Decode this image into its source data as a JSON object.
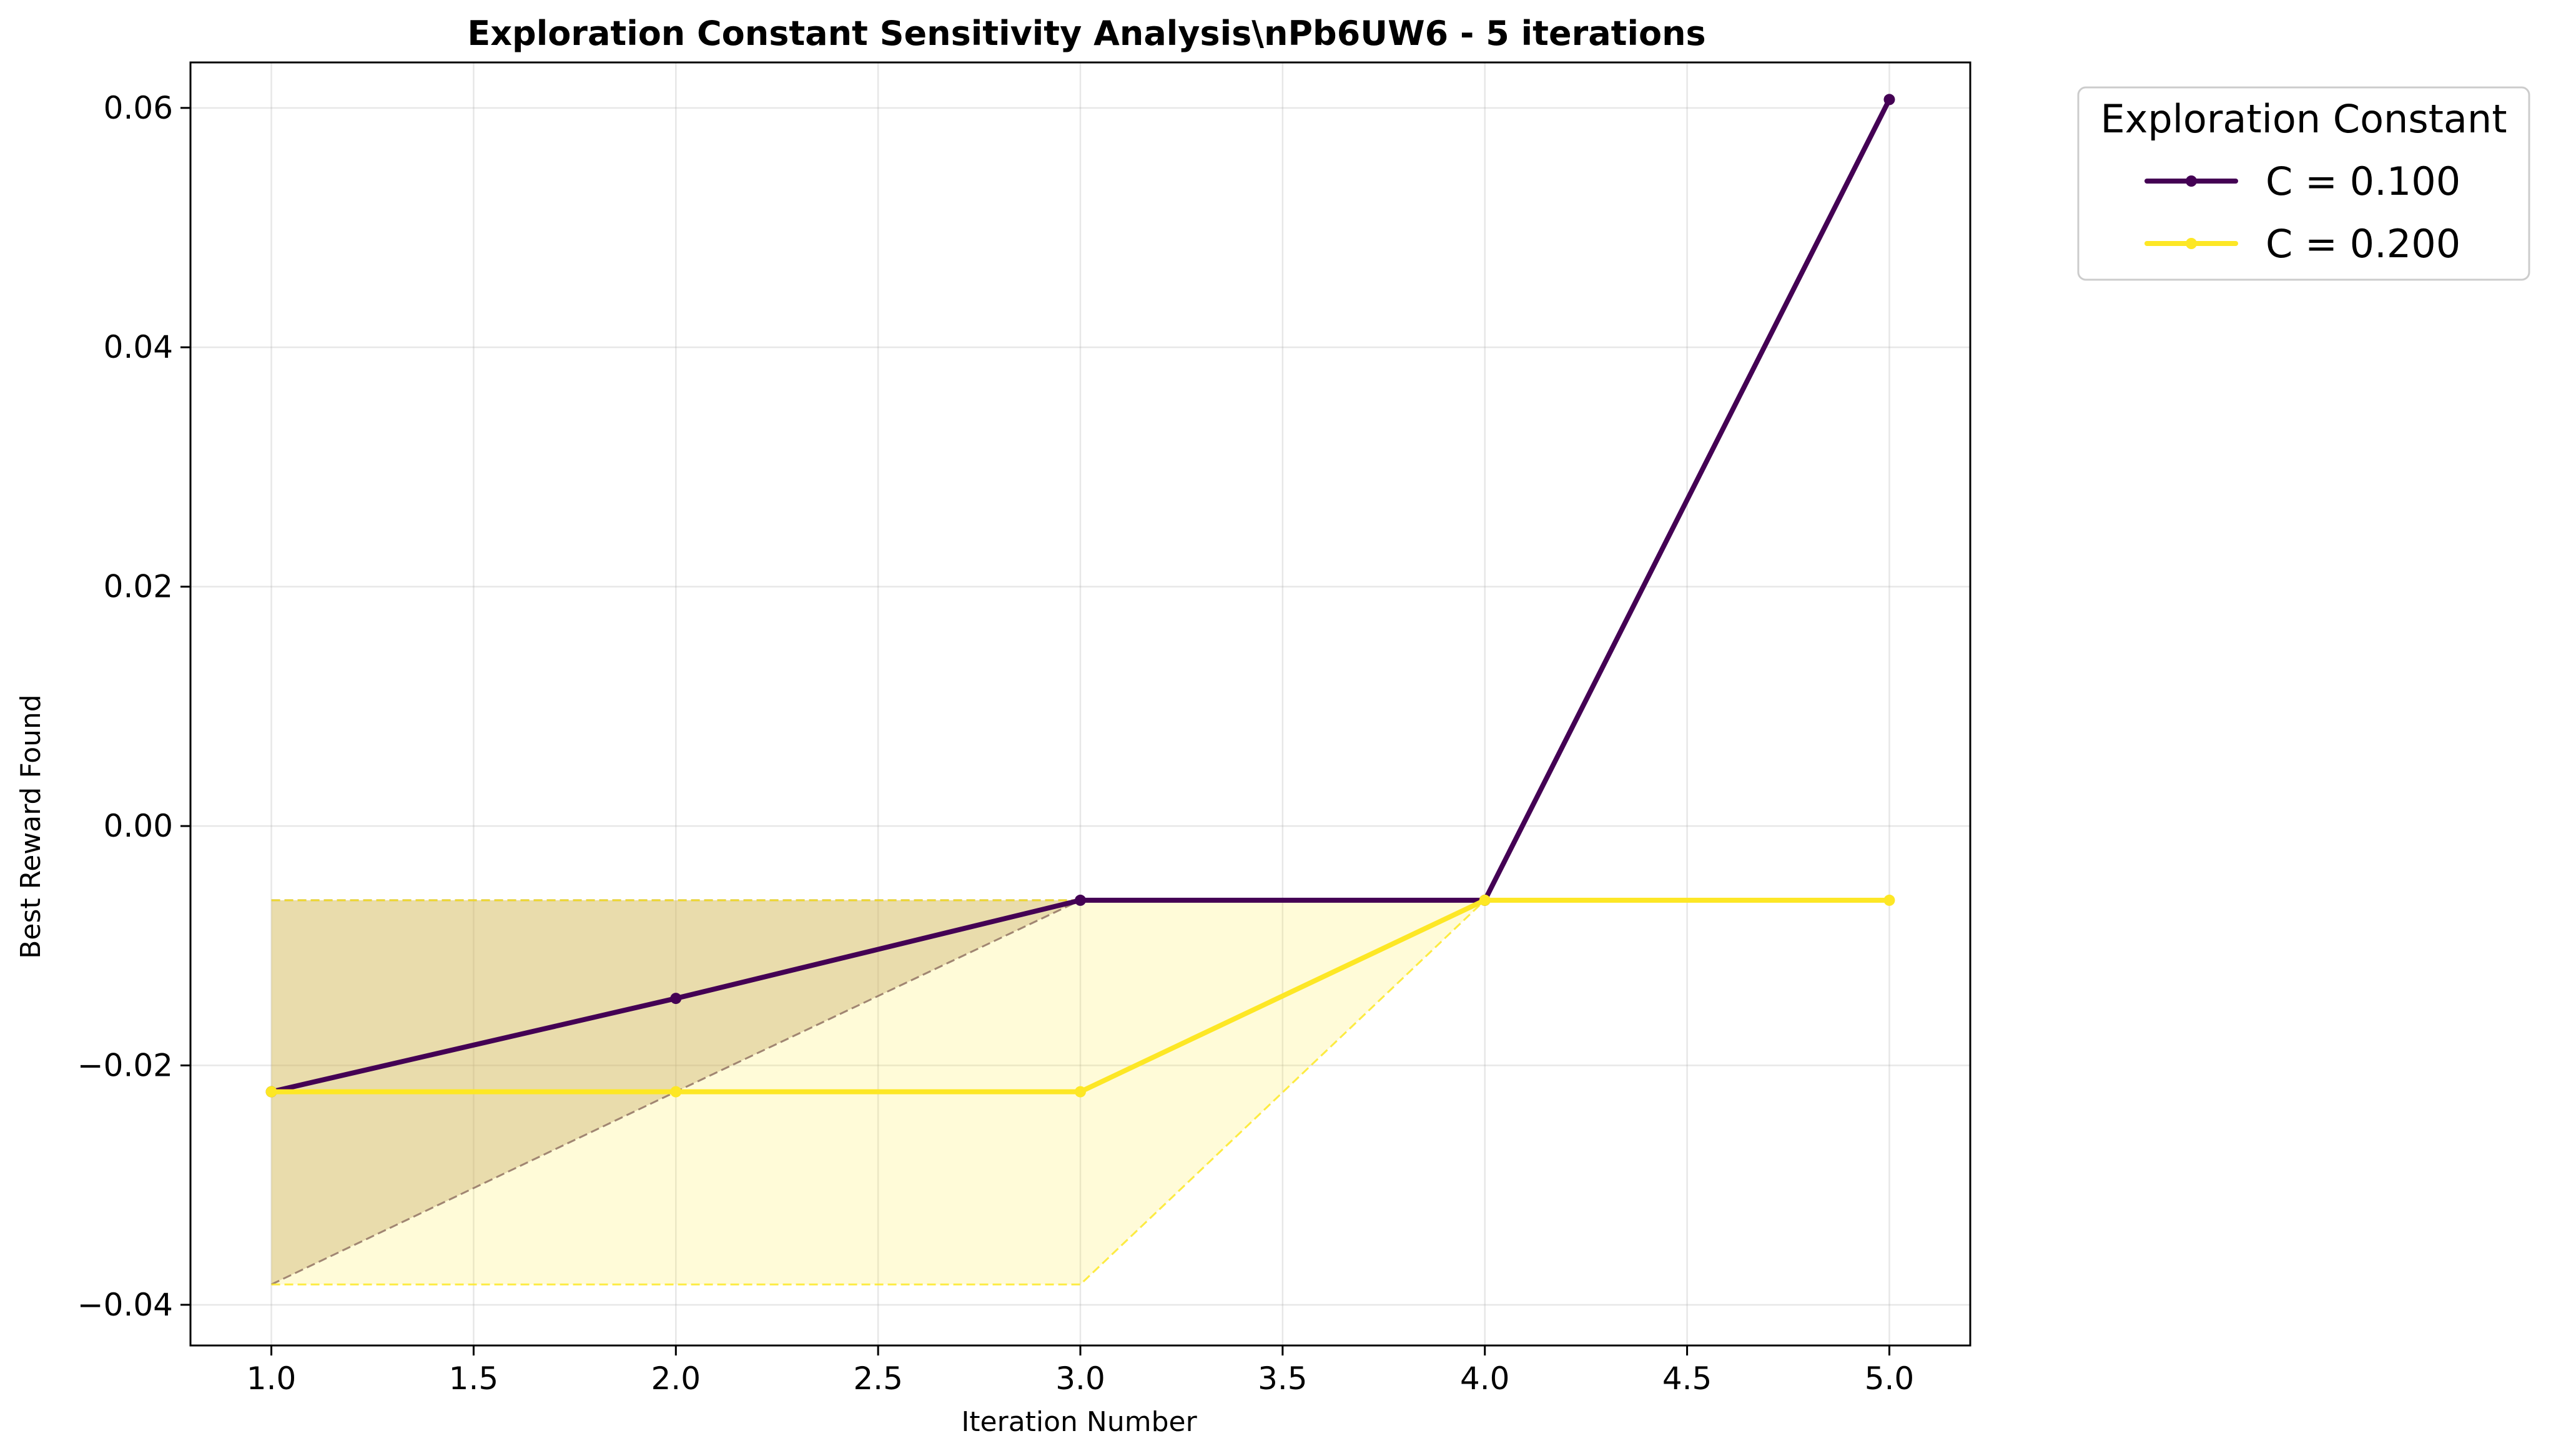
{
  "chart_data": {
    "type": "line",
    "title": "Exploration Constant Sensitivity Analysis\\nPb6UW6 - 5 iterations",
    "xlabel": "Iteration Number",
    "ylabel": "Best Reward Found",
    "xlim": [
      0.8,
      5.2
    ],
    "ylim": [
      -0.0434,
      0.0638
    ],
    "xticks": [
      1.0,
      1.5,
      2.0,
      2.5,
      3.0,
      3.5,
      4.0,
      4.5,
      5.0
    ],
    "xtick_labels": [
      "1.0",
      "1.5",
      "2.0",
      "2.5",
      "3.0",
      "3.5",
      "4.0",
      "4.5",
      "5.0"
    ],
    "yticks": [
      -0.04,
      -0.02,
      0.0,
      0.02,
      0.04,
      0.06
    ],
    "ytick_labels": [
      "−0.04",
      "−0.02",
      "0.00",
      "0.02",
      "0.04",
      "0.06"
    ],
    "grid": true,
    "legend": {
      "title": "Exploration Constant",
      "placement": "outside-top-right"
    },
    "x": [
      1,
      2,
      3,
      4,
      5
    ],
    "series": [
      {
        "name": "C = 0.100",
        "color": "#440154",
        "values": [
          -0.0222,
          -0.0144,
          -0.0062,
          -0.0062,
          0.0607
        ],
        "band_lower": [
          -0.0383,
          -0.0222,
          -0.0062,
          -0.0062,
          -0.0062
        ],
        "band_upper": [
          -0.0062,
          -0.0062,
          -0.0062,
          -0.0062,
          -0.0062
        ],
        "band_color": "#bfa07a"
      },
      {
        "name": "C = 0.200",
        "color": "#fde725",
        "values": [
          -0.0222,
          -0.0222,
          -0.0222,
          -0.0062,
          -0.0062
        ],
        "band_lower": [
          -0.0383,
          -0.0383,
          -0.0383,
          -0.0062,
          -0.0062
        ],
        "band_upper": [
          -0.0062,
          -0.0062,
          -0.0062,
          -0.0062,
          -0.0062
        ],
        "band_color": "#fde725"
      }
    ]
  }
}
